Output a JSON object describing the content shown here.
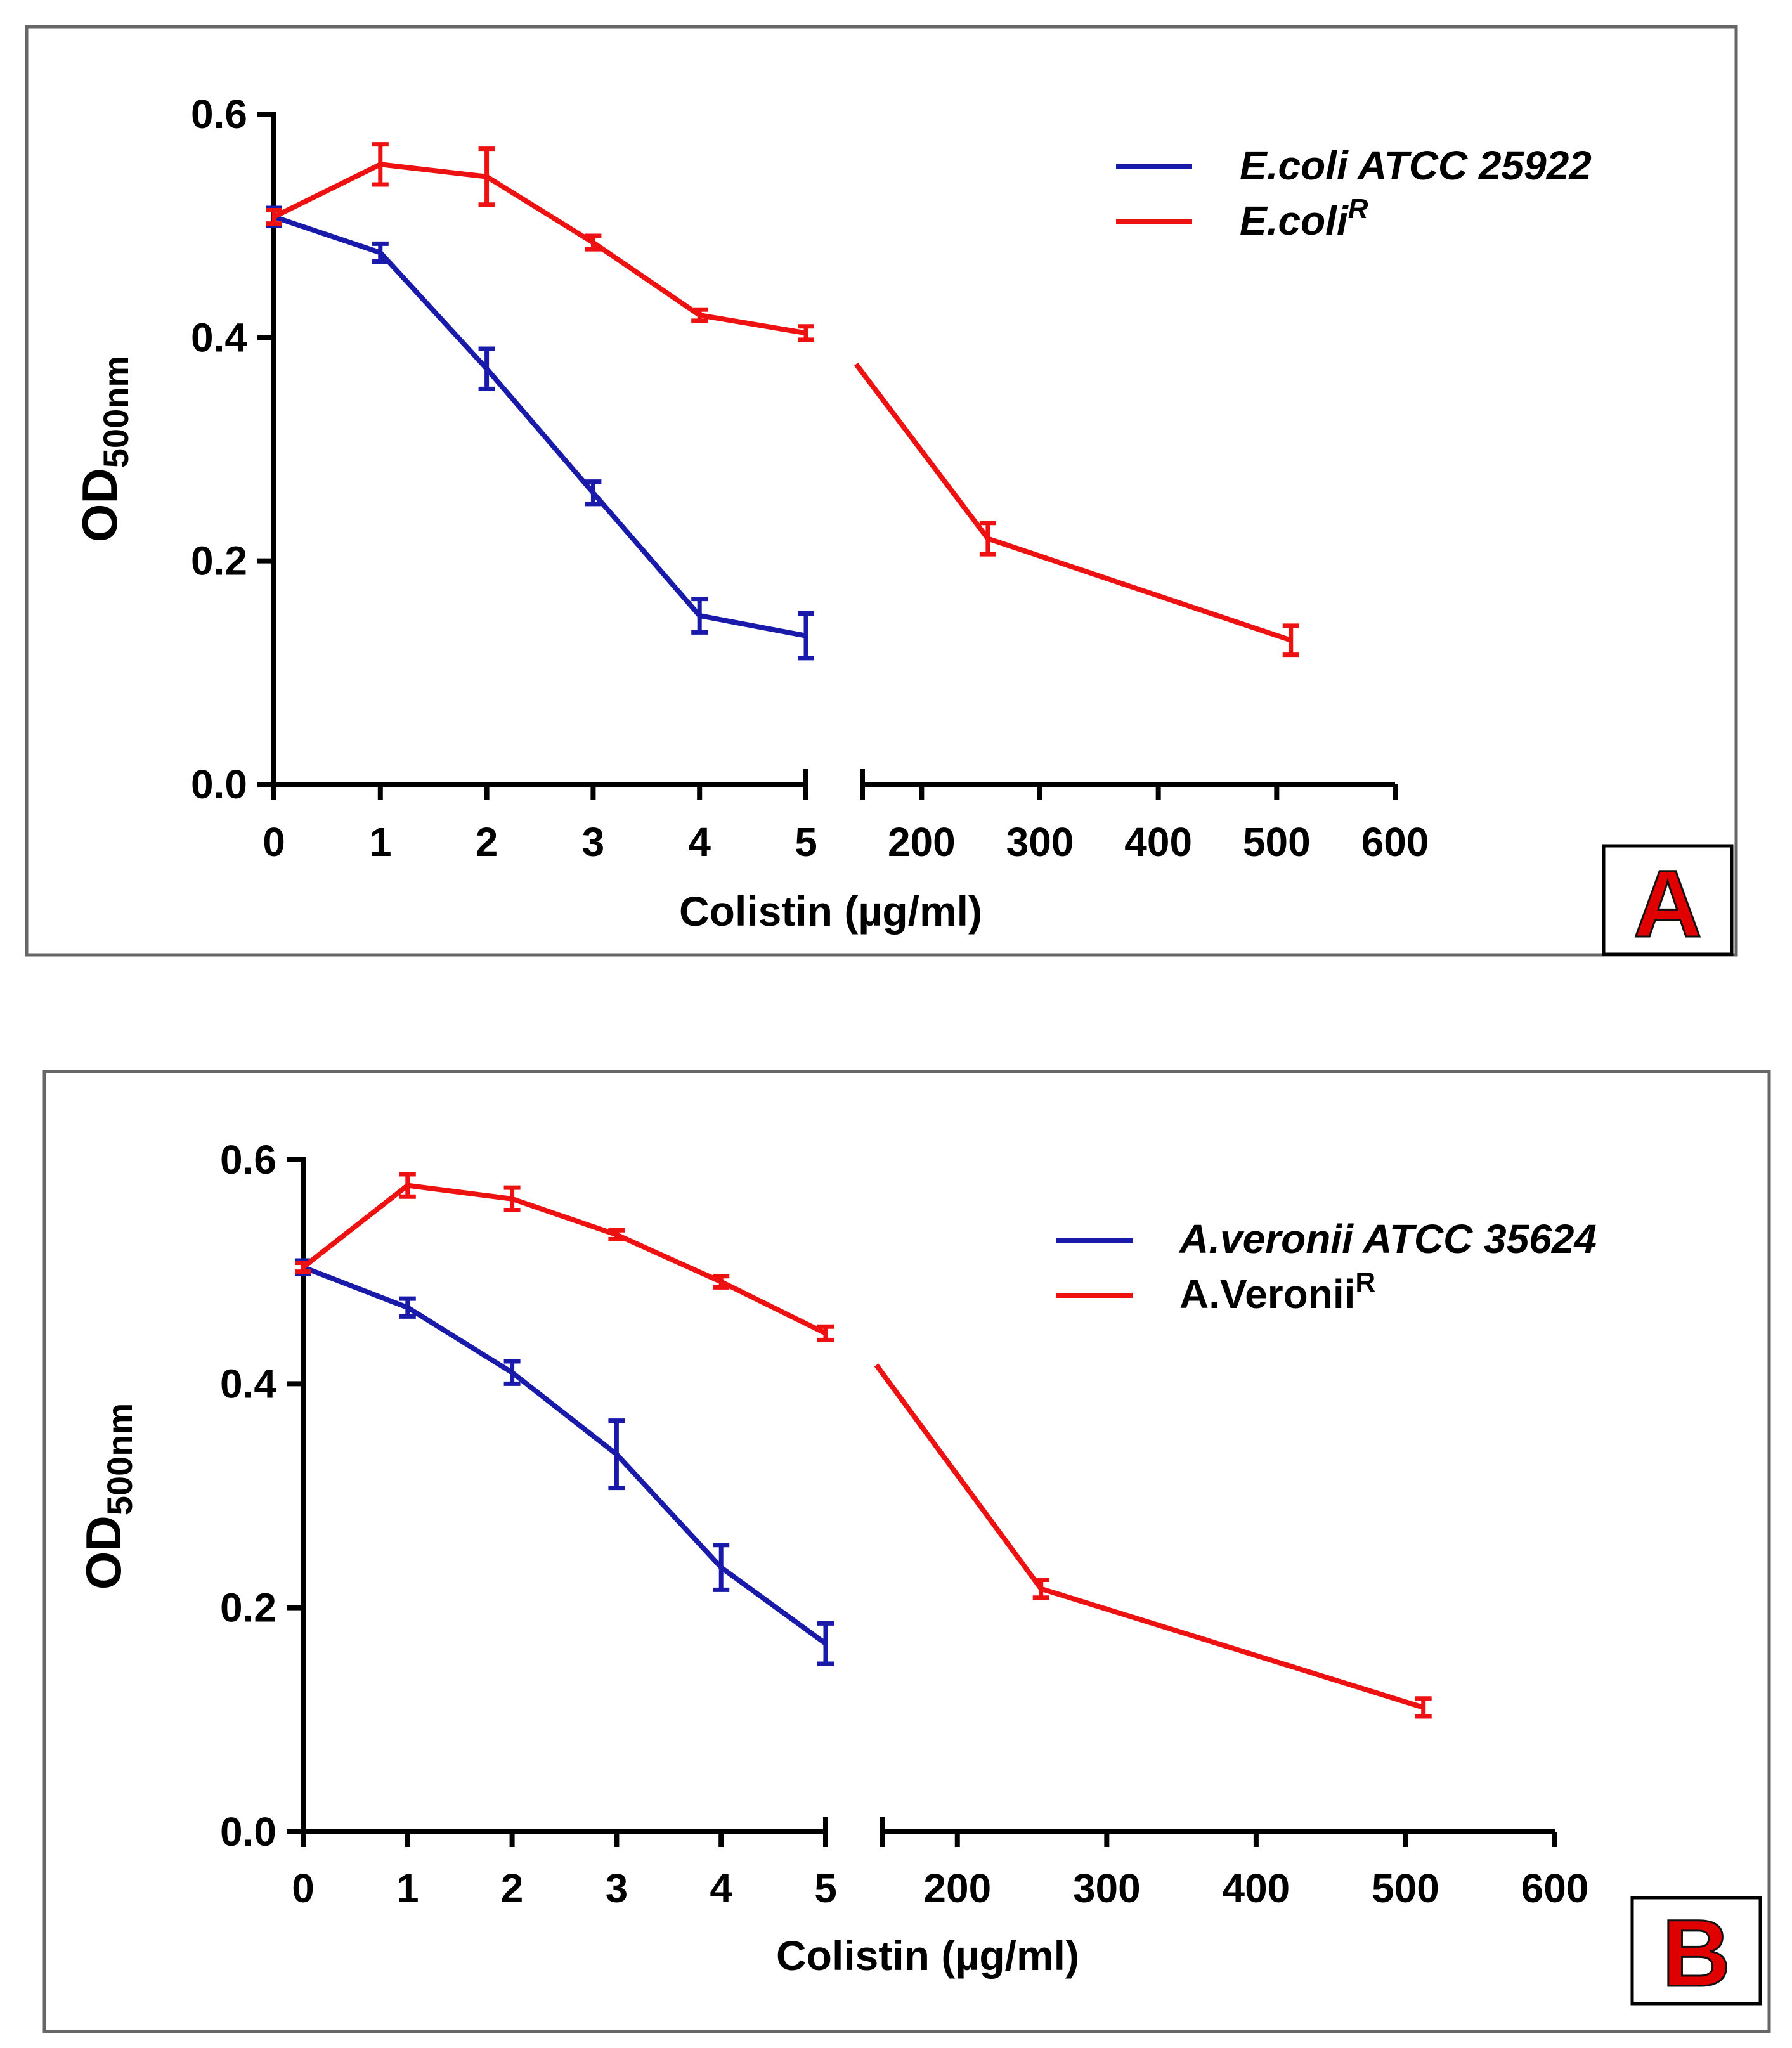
{
  "figure": {
    "panels": [
      {
        "letter": "A",
        "letter_color": "#e00000"
      },
      {
        "letter": "B",
        "letter_color": "#e00000"
      }
    ]
  },
  "chart_data": [
    {
      "type": "line",
      "panel": "A",
      "xlabel": "Colistin (µg/ml)",
      "ylabel_main": "OD",
      "ylabel_sub": "500nm",
      "ylim": [
        0,
        0.6
      ],
      "yticks": [
        0.0,
        0.2,
        0.4,
        0.6
      ],
      "ytick_labels": [
        "0.0",
        "0.2",
        "0.4",
        "0.6"
      ],
      "x_segments": [
        {
          "range": [
            0,
            5
          ],
          "ticks": [
            0,
            1,
            2,
            3,
            4,
            5
          ],
          "tick_labels": [
            "0",
            "1",
            "2",
            "3",
            "4",
            "5"
          ]
        },
        {
          "range": [
            150,
            600
          ],
          "ticks": [
            200,
            300,
            400,
            500,
            600
          ],
          "tick_labels": [
            "200",
            "300",
            "400",
            "500",
            "600"
          ]
        }
      ],
      "series": [
        {
          "name": "E.coli ATCC 25922",
          "italic_style": true,
          "color": "#1a1aaa",
          "points": [
            {
              "x": 0,
              "y": 0.508,
              "err": 0.008
            },
            {
              "x": 1,
              "y": 0.476,
              "err": 0.008
            },
            {
              "x": 2,
              "y": 0.372,
              "err": 0.018
            },
            {
              "x": 3,
              "y": 0.261,
              "err": 0.01
            },
            {
              "x": 4,
              "y": 0.151,
              "err": 0.015
            },
            {
              "x": 5,
              "y": 0.133,
              "err": 0.02
            }
          ]
        },
        {
          "name": "E.coli",
          "superscript": "R",
          "italic_style": true,
          "color": "#ee1111",
          "points": [
            {
              "x": 0,
              "y": 0.508,
              "err": 0.006
            },
            {
              "x": 1,
              "y": 0.555,
              "err": 0.018
            },
            {
              "x": 2,
              "y": 0.544,
              "err": 0.025
            },
            {
              "x": 3,
              "y": 0.485,
              "err": 0.006
            },
            {
              "x": 4,
              "y": 0.42,
              "err": 0.005
            },
            {
              "x": 5,
              "y": 0.404,
              "err": 0.006
            },
            {
              "x": 256,
              "y": 0.22,
              "err": 0.014
            },
            {
              "x": 512,
              "y": 0.129,
              "err": 0.013
            }
          ]
        }
      ]
    },
    {
      "type": "line",
      "panel": "B",
      "xlabel": "Colistin (µg/ml)",
      "ylabel_main": "OD",
      "ylabel_sub": "500nm",
      "ylim": [
        0,
        0.6
      ],
      "yticks": [
        0.0,
        0.2,
        0.4,
        0.6
      ],
      "ytick_labels": [
        "0.0",
        "0.2",
        "0.4",
        "0.6"
      ],
      "x_segments": [
        {
          "range": [
            0,
            5
          ],
          "ticks": [
            0,
            1,
            2,
            3,
            4,
            5
          ],
          "tick_labels": [
            "0",
            "1",
            "2",
            "3",
            "4",
            "5"
          ]
        },
        {
          "range": [
            150,
            600
          ],
          "ticks": [
            200,
            300,
            400,
            500,
            600
          ],
          "tick_labels": [
            "200",
            "300",
            "400",
            "500",
            "600"
          ]
        }
      ],
      "series": [
        {
          "name": "A.veronii ATCC 35624",
          "italic_style": true,
          "color": "#1a1aaa",
          "points": [
            {
              "x": 0,
              "y": 0.504,
              "err": 0.006
            },
            {
              "x": 1,
              "y": 0.468,
              "err": 0.008
            },
            {
              "x": 2,
              "y": 0.41,
              "err": 0.01
            },
            {
              "x": 3,
              "y": 0.337,
              "err": 0.03
            },
            {
              "x": 4,
              "y": 0.236,
              "err": 0.02
            },
            {
              "x": 5,
              "y": 0.168,
              "err": 0.018
            }
          ]
        },
        {
          "name": "A.Veronii",
          "superscript": "R",
          "italic_style": false,
          "color": "#ee1111",
          "points": [
            {
              "x": 0,
              "y": 0.504,
              "err": 0.004
            },
            {
              "x": 1,
              "y": 0.577,
              "err": 0.01
            },
            {
              "x": 2,
              "y": 0.565,
              "err": 0.01
            },
            {
              "x": 3,
              "y": 0.533,
              "err": 0.0
            },
            {
              "x": 4,
              "y": 0.491,
              "err": 0.005
            },
            {
              "x": 5,
              "y": 0.445,
              "err": 0.006
            },
            {
              "x": 256,
              "y": 0.217,
              "err": 0.008
            },
            {
              "x": 512,
              "y": 0.111,
              "err": 0.008
            }
          ]
        }
      ]
    }
  ]
}
